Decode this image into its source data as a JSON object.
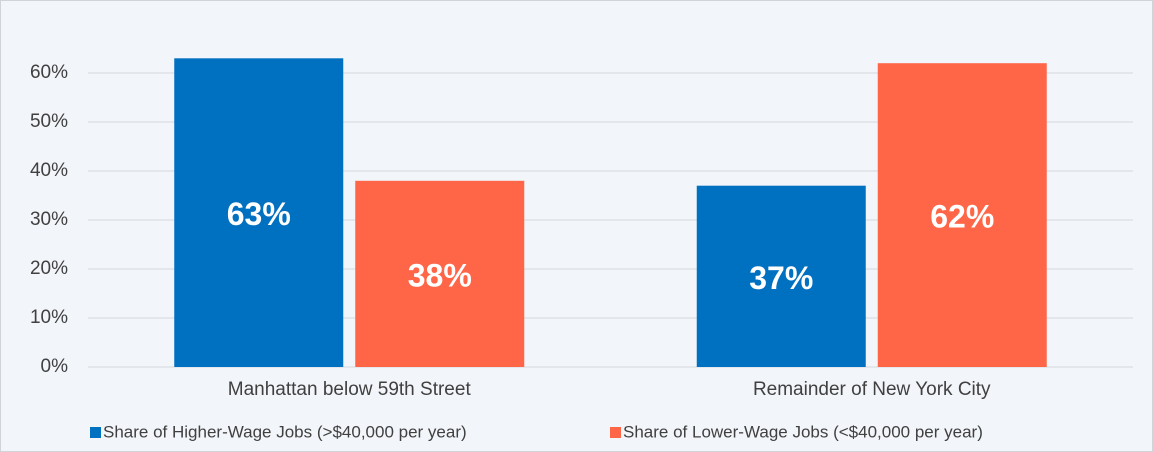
{
  "chart_data": {
    "type": "bar",
    "categories": [
      "Manhattan below 59th Street",
      "Remainder of New York City"
    ],
    "series": [
      {
        "name": "Share of Higher-Wage Jobs (>$40,000 per year)",
        "color": "#0070c0",
        "values": [
          63,
          37
        ],
        "value_labels": [
          "63%",
          "37%"
        ]
      },
      {
        "name": "Share of Lower-Wage Jobs  (<$40,000 per year)",
        "color": "#ff6647",
        "values": [
          38,
          62
        ],
        "value_labels": [
          "38%",
          "62%"
        ]
      }
    ],
    "ylim": [
      0,
      65
    ],
    "yticks": [
      {
        "value": 0,
        "label": "0%"
      },
      {
        "value": 10,
        "label": "10%"
      },
      {
        "value": 20,
        "label": "20%"
      },
      {
        "value": 30,
        "label": "30%"
      },
      {
        "value": 40,
        "label": "40%"
      },
      {
        "value": 50,
        "label": "50%"
      },
      {
        "value": 60,
        "label": "60%"
      }
    ],
    "grid": true,
    "legend": "bottom"
  }
}
